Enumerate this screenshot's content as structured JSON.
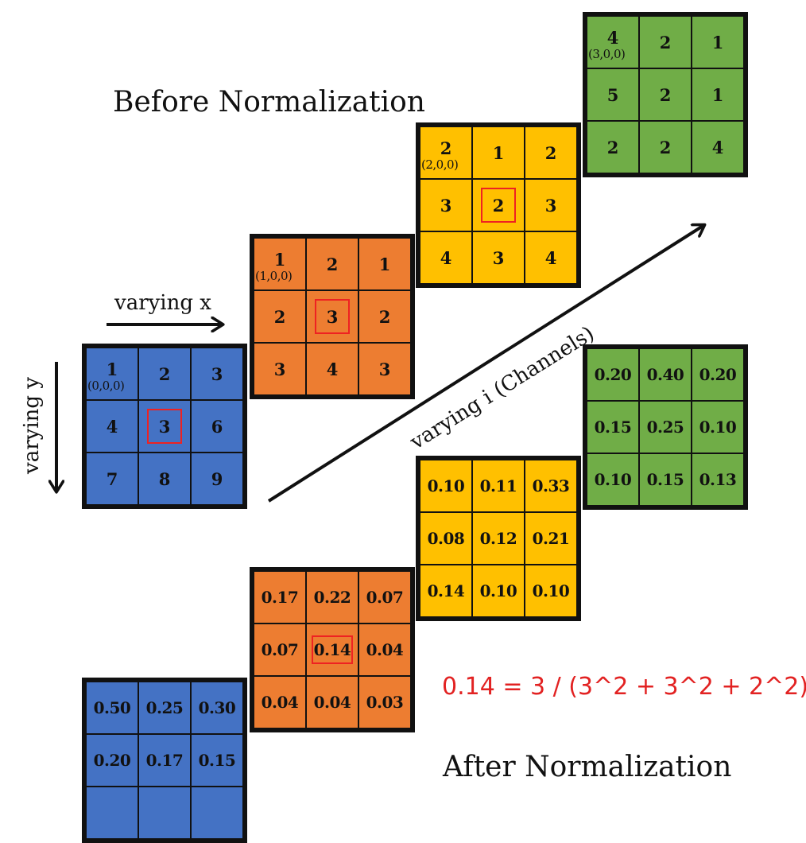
{
  "colors": {
    "blue": "#4472c4",
    "orange": "#ed7d31",
    "yellow": "#ffc000",
    "green": "#70ad47",
    "highlight": "#e22222"
  },
  "titles": {
    "before": "Before Normalization",
    "after": "After Normalization"
  },
  "axes": {
    "x": "varying x",
    "y": "varying y",
    "channels": "varying i (Channels)"
  },
  "formula": "0.14 = 3 / (3^2 + 3^2 + 2^2)",
  "before": [
    {
      "color_key": "blue",
      "cells": [
        {
          "v": "1",
          "coord": "(0,0,0)"
        },
        {
          "v": "2"
        },
        {
          "v": "3"
        },
        {
          "v": "4"
        },
        {
          "v": "3",
          "highlight": true
        },
        {
          "v": "6"
        },
        {
          "v": "7"
        },
        {
          "v": "8"
        },
        {
          "v": "9"
        }
      ]
    },
    {
      "color_key": "orange",
      "cells": [
        {
          "v": "1",
          "coord": "(1,0,0)"
        },
        {
          "v": "2"
        },
        {
          "v": "1"
        },
        {
          "v": "2"
        },
        {
          "v": "3",
          "highlight": true
        },
        {
          "v": "2"
        },
        {
          "v": "3"
        },
        {
          "v": "4"
        },
        {
          "v": "3"
        }
      ]
    },
    {
      "color_key": "yellow",
      "cells": [
        {
          "v": "2",
          "coord": "(2,0,0)"
        },
        {
          "v": "1"
        },
        {
          "v": "2"
        },
        {
          "v": "3"
        },
        {
          "v": "2",
          "highlight": true
        },
        {
          "v": "3"
        },
        {
          "v": "4"
        },
        {
          "v": "3"
        },
        {
          "v": "4"
        }
      ]
    },
    {
      "color_key": "green",
      "cells": [
        {
          "v": "4",
          "coord": "(3,0,0)"
        },
        {
          "v": "2"
        },
        {
          "v": "1"
        },
        {
          "v": "5"
        },
        {
          "v": "2"
        },
        {
          "v": "1"
        },
        {
          "v": "2"
        },
        {
          "v": "2"
        },
        {
          "v": "4"
        }
      ]
    }
  ],
  "after": [
    {
      "color_key": "blue",
      "cells": [
        {
          "v": "0.50"
        },
        {
          "v": "0.25"
        },
        {
          "v": "0.30"
        },
        {
          "v": "0.20"
        },
        {
          "v": "0.17"
        },
        {
          "v": "0.15"
        },
        {
          "v": ""
        },
        {
          "v": ""
        },
        {
          "v": ""
        }
      ]
    },
    {
      "color_key": "orange",
      "cells": [
        {
          "v": "0.17"
        },
        {
          "v": "0.22"
        },
        {
          "v": "0.07"
        },
        {
          "v": "0.07"
        },
        {
          "v": "0.14",
          "highlight": true
        },
        {
          "v": "0.04"
        },
        {
          "v": "0.04"
        },
        {
          "v": "0.04"
        },
        {
          "v": "0.03"
        }
      ]
    },
    {
      "color_key": "yellow",
      "cells": [
        {
          "v": "0.10"
        },
        {
          "v": "0.11"
        },
        {
          "v": "0.33"
        },
        {
          "v": "0.08"
        },
        {
          "v": "0.12"
        },
        {
          "v": "0.21"
        },
        {
          "v": "0.14"
        },
        {
          "v": "0.10"
        },
        {
          "v": "0.10"
        }
      ]
    },
    {
      "color_key": "green",
      "cells": [
        {
          "v": "0.20"
        },
        {
          "v": "0.40"
        },
        {
          "v": "0.20"
        },
        {
          "v": "0.15"
        },
        {
          "v": "0.25"
        },
        {
          "v": "0.10"
        },
        {
          "v": "0.10"
        },
        {
          "v": "0.15"
        },
        {
          "v": "0.13"
        }
      ]
    }
  ]
}
